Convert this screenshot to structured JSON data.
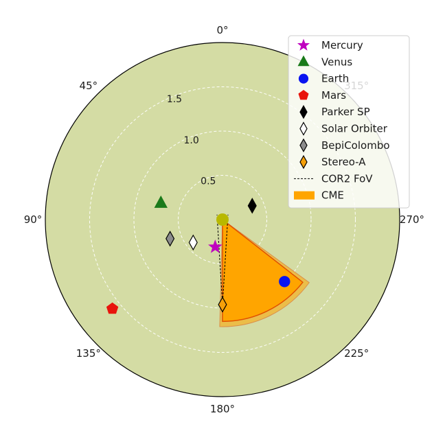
{
  "chart_data": {
    "type": "polar-scatter",
    "theta_direction": "counterclockwise",
    "theta_zero": "top",
    "r_max": 2.0,
    "r_ticks": [
      0.5,
      1.0,
      1.5
    ],
    "theta_ticks": [
      {
        "deg": 0,
        "label": "0°"
      },
      {
        "deg": 45,
        "label": "45°"
      },
      {
        "deg": 90,
        "label": "90°"
      },
      {
        "deg": 135,
        "label": "135°"
      },
      {
        "deg": 180,
        "label": "180°"
      },
      {
        "deg": 225,
        "label": "225°"
      },
      {
        "deg": 270,
        "label": "270°"
      },
      {
        "deg": 315,
        "label": "315°"
      }
    ],
    "grid": true,
    "colors": {
      "background": "#d4dca4",
      "mercury": "#bf00bf",
      "venus": "#1a7a1a",
      "earth": "#0a14f0",
      "mars": "#e8140c",
      "parker": "#000000",
      "solo": "#ffffff",
      "bepi": "#8c8c8c",
      "stereo": "#f5a00a",
      "cme": "#ffa500",
      "cme_edge": "#e05000",
      "sun": "#b8b800"
    },
    "sun": {
      "r": 0,
      "theta": 0
    },
    "bodies": [
      {
        "key": "mercury",
        "name": "Mercury",
        "marker": "star",
        "r": 0.32,
        "theta": 165
      },
      {
        "key": "venus",
        "name": "Venus",
        "marker": "triangle",
        "r": 0.72,
        "theta": 75
      },
      {
        "key": "earth",
        "name": "Earth",
        "marker": "circle",
        "r": 0.99,
        "theta": 225
      },
      {
        "key": "mars",
        "name": "Mars",
        "marker": "pentagon",
        "r": 1.6,
        "theta": 129
      },
      {
        "key": "parker",
        "name": "Parker SP",
        "marker": "diamond",
        "r": 0.37,
        "theta": 295
      },
      {
        "key": "solo",
        "name": "Solar Orbiter",
        "marker": "diamond",
        "r": 0.42,
        "theta": 128
      },
      {
        "key": "bepi",
        "name": "BepiColombo",
        "marker": "diamond",
        "r": 0.63,
        "theta": 110
      },
      {
        "key": "stereo",
        "name": "Stereo-A",
        "marker": "diamond",
        "r": 0.96,
        "theta": 180
      }
    ],
    "cor2_fov": {
      "name": "COR2 FoV",
      "observer_key": "stereo",
      "half_angle_deg": 3.5,
      "extent_r": 1.0
    },
    "cme": {
      "name": "CME",
      "theta_start": 180,
      "theta_end": 232,
      "r_inner": 0,
      "r_outer": 1.15
    }
  }
}
